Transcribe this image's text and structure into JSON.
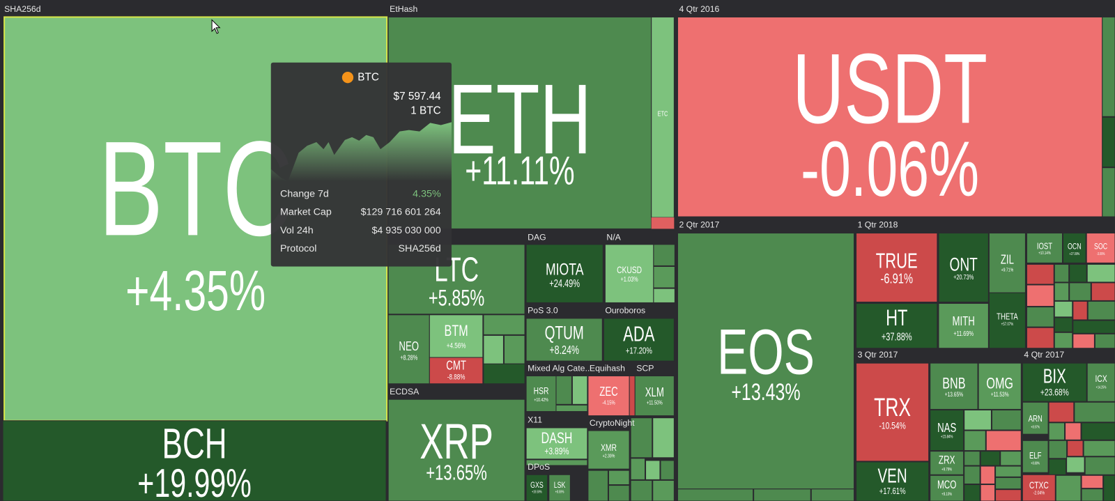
{
  "groups": [
    {
      "label": "SHA256d",
      "tiles": [
        {
          "symbol": "BTC",
          "change": "+4.35%"
        },
        {
          "symbol": "BCH",
          "change": "+19.99%"
        }
      ]
    },
    {
      "label": "EtHash",
      "tiles": [
        {
          "symbol": "ETH",
          "change": "+11.11%"
        },
        {
          "symbol": "ETC"
        }
      ]
    },
    {
      "label": "4 Qtr 2016",
      "tiles": [
        {
          "symbol": "USDT",
          "change": "-0.06%"
        }
      ]
    },
    {
      "tiles": [
        {
          "symbol": "LTC",
          "change": "+5.85%"
        },
        {
          "symbol": "NEO",
          "change": "+8.28%"
        },
        {
          "symbol": "BTM",
          "change": "+4.56%"
        },
        {
          "symbol": "CMT",
          "change": "-8.88%"
        }
      ]
    },
    {
      "label": "DAG",
      "tiles": [
        {
          "symbol": "MIOTA",
          "change": "+24.49%"
        }
      ]
    },
    {
      "label": "N/A",
      "tiles": [
        {
          "symbol": "CKUSD",
          "change": "+1.03%"
        }
      ]
    },
    {
      "label": "PoS 3.0",
      "tiles": [
        {
          "symbol": "QTUM",
          "change": "+8.24%"
        }
      ]
    },
    {
      "label": "Ouroboros",
      "tiles": [
        {
          "symbol": "ADA",
          "change": "+17.20%"
        }
      ]
    },
    {
      "label": "Mixed Alg Cate...",
      "tiles": [
        {
          "symbol": "HSR",
          "change": "+10.42%"
        }
      ]
    },
    {
      "label": "Equihash",
      "tiles": [
        {
          "symbol": "ZEC",
          "change": "-4.15%"
        }
      ]
    },
    {
      "label": "SCP",
      "tiles": [
        {
          "symbol": "XLM",
          "change": "+11.50%"
        }
      ]
    },
    {
      "label": "X11",
      "tiles": [
        {
          "symbol": "DASH",
          "change": "+3.89%"
        }
      ]
    },
    {
      "label": "CryptoNight",
      "tiles": [
        {
          "symbol": "XMR",
          "change": "+2.39%"
        }
      ]
    },
    {
      "label": "DPoS",
      "tiles": [
        {
          "symbol": "GXS",
          "change": "+19.59%"
        },
        {
          "symbol": "LSK",
          "change": "+8.59%"
        }
      ]
    },
    {
      "label": "ECDSA",
      "tiles": [
        {
          "symbol": "XRP",
          "change": "+13.65%"
        }
      ]
    },
    {
      "label": "2 Qtr 2017",
      "tiles": [
        {
          "symbol": "EOS",
          "change": "+13.43%"
        }
      ]
    },
    {
      "label": "1 Qtr 2018",
      "tiles": [
        {
          "symbol": "TRUE",
          "change": "-6.91%"
        },
        {
          "symbol": "ONT",
          "change": "+20.73%"
        },
        {
          "symbol": "ZIL",
          "change": "+9.71%"
        },
        {
          "symbol": "IOST",
          "change": "+10.14%"
        },
        {
          "symbol": "OCN",
          "change": "+27.09%"
        },
        {
          "symbol": "SOC",
          "change": "-3.09%"
        },
        {
          "symbol": "HT",
          "change": "+37.88%"
        },
        {
          "symbol": "MITH",
          "change": "+11.69%"
        },
        {
          "symbol": "THETA",
          "change": "+57.07%"
        }
      ]
    },
    {
      "label": "3 Qtr 2017",
      "tiles": [
        {
          "symbol": "TRX",
          "change": "-10.54%"
        },
        {
          "symbol": "VEN",
          "change": "+17.61%"
        },
        {
          "symbol": "BNB",
          "change": "+13.65%"
        },
        {
          "symbol": "OMG",
          "change": "+11.53%"
        },
        {
          "symbol": "NAS",
          "change": "+15.84%"
        },
        {
          "symbol": "ZRX",
          "change": "+9.79%"
        },
        {
          "symbol": "MCO",
          "change": "+9.10%"
        }
      ]
    },
    {
      "label": "4 Qtr 2017",
      "tiles": [
        {
          "symbol": "BIX",
          "change": "+23.68%"
        },
        {
          "symbol": "ICX",
          "change": "+14.25%"
        },
        {
          "symbol": "ARN",
          "change": "+8.97%"
        },
        {
          "symbol": "ELF",
          "change": "+8.88%"
        },
        {
          "symbol": "CTXC",
          "change": "-2.04%"
        }
      ]
    }
  ],
  "tooltip": {
    "symbol": "BTC",
    "price": "$7 597.44",
    "unit": "1 BTC",
    "rows": [
      {
        "label": "Change 7d",
        "value": "4.35%"
      },
      {
        "label": "Market Cap",
        "value": "$129 716 601 264"
      },
      {
        "label": "Vol 24h",
        "value": "$4 935 030 000"
      },
      {
        "label": "Protocol",
        "value": "SHA256d"
      }
    ]
  }
}
